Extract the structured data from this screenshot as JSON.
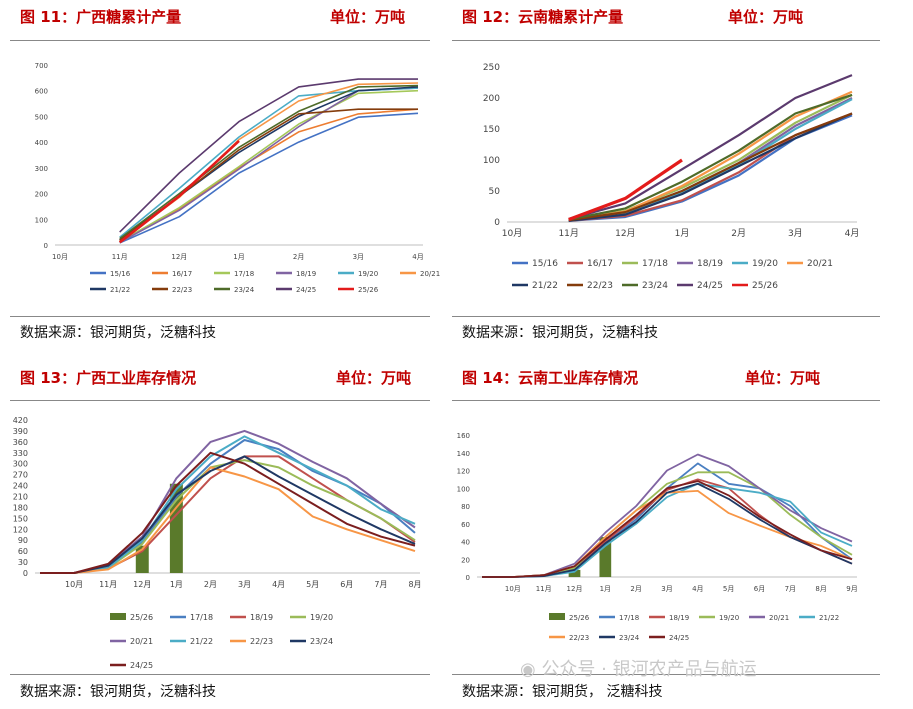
{
  "panels": [
    {
      "title": "图 11：广西糖累计产量",
      "unit": "单位：万吨",
      "source": "数据来源：银河期货，泛糖科技",
      "chart_data": {
        "type": "line",
        "categories": [
          "10月",
          "11月",
          "12月",
          "1月",
          "2月",
          "3月",
          "4月"
        ],
        "ylim": [
          0,
          700
        ],
        "yticks": [
          0,
          100,
          200,
          300,
          400,
          500,
          600,
          700
        ],
        "grid": false,
        "legend_position": "bottom",
        "series": [
          {
            "name": "15/16",
            "color": "#4472c4",
            "values": [
              null,
              8,
              110,
              280,
              400,
              497,
              512
            ]
          },
          {
            "name": "16/17",
            "color": "#ed7d31",
            "values": [
              null,
              10,
              140,
              300,
              440,
              510,
              528
            ]
          },
          {
            "name": "17/18",
            "color": "#a5c85a",
            "values": [
              null,
              12,
              145,
              305,
              470,
              590,
              600
            ]
          },
          {
            "name": "18/19",
            "color": "#8064a2",
            "values": [
              null,
              10,
              135,
              295,
              460,
              600,
              610
            ]
          },
          {
            "name": "19/20",
            "color": "#4bacc6",
            "values": [
              null,
              30,
              220,
              420,
              580,
              600,
              610
            ]
          },
          {
            "name": "20/21",
            "color": "#f79646",
            "values": [
              null,
              15,
              185,
              410,
              560,
              625,
              630
            ]
          },
          {
            "name": "21/22",
            "color": "#1f3864",
            "values": [
              null,
              20,
              190,
              360,
              500,
              600,
              615
            ]
          },
          {
            "name": "22/23",
            "color": "#843c0c",
            "values": [
              null,
              18,
              190,
              370,
              510,
              528,
              528
            ]
          },
          {
            "name": "23/24",
            "color": "#4e6b29",
            "values": [
              null,
              25,
              200,
              380,
              520,
              615,
              620
            ]
          },
          {
            "name": "24/25",
            "color": "#5b3a6e",
            "values": [
              null,
              50,
              280,
              480,
              615,
              645,
              645
            ]
          },
          {
            "name": "25/26",
            "color": "#e31b1b",
            "values": [
              null,
              10,
              190,
              405,
              null,
              null,
              null
            ]
          }
        ]
      }
    },
    {
      "title": "图 12：云南糖累计产量",
      "unit": "单位：万吨",
      "source": "数据来源：银河期货，泛糖科技",
      "chart_data": {
        "type": "line",
        "categories": [
          "10月",
          "11月",
          "12月",
          "1月",
          "2月",
          "3月",
          "4月"
        ],
        "ylim": [
          0,
          250
        ],
        "yticks": [
          0,
          50,
          100,
          150,
          200,
          250
        ],
        "grid": false,
        "legend_position": "bottom",
        "series": [
          {
            "name": "15/16",
            "color": "#4472c4",
            "values": [
              null,
              2,
              8,
              33,
              75,
              135,
              172
            ]
          },
          {
            "name": "16/17",
            "color": "#c0504d",
            "values": [
              null,
              2,
              10,
              35,
              80,
              140,
              175
            ]
          },
          {
            "name": "17/18",
            "color": "#9bbb59",
            "values": [
              null,
              3,
              18,
              55,
              100,
              160,
              205
            ]
          },
          {
            "name": "18/19",
            "color": "#8064a2",
            "values": [
              null,
              3,
              15,
              50,
              95,
              155,
              200
            ]
          },
          {
            "name": "19/20",
            "color": "#4bacc6",
            "values": [
              null,
              3,
              14,
              48,
              92,
              150,
              198
            ]
          },
          {
            "name": "20/21",
            "color": "#f79646",
            "values": [
              null,
              3,
              17,
              58,
              110,
              170,
              210
            ]
          },
          {
            "name": "21/22",
            "color": "#1f3864",
            "values": [
              null,
              2,
              12,
              45,
              90,
              135,
              175
            ]
          },
          {
            "name": "22/23",
            "color": "#843c0c",
            "values": [
              null,
              3,
              16,
              50,
              95,
              140,
              175
            ]
          },
          {
            "name": "23/24",
            "color": "#4e6b29",
            "values": [
              null,
              4,
              22,
              65,
              115,
              175,
              205
            ]
          },
          {
            "name": "24/25",
            "color": "#5b3a6e",
            "values": [
              null,
              5,
              30,
              85,
              140,
              200,
              237
            ]
          },
          {
            "name": "25/26",
            "color": "#e31b1b",
            "values": [
              null,
              4,
              38,
              100,
              null,
              null,
              null
            ]
          }
        ]
      }
    },
    {
      "title": "图 13：广西工业库存情况",
      "unit": "单位：万吨",
      "source": "数据来源：银河期货，泛糖科技",
      "chart_data": {
        "type": "line",
        "categories": [
          "",
          "10月",
          "11月",
          "12月",
          "1月",
          "2月",
          "3月",
          "4月",
          "5月",
          "6月",
          "7月",
          "8月"
        ],
        "ylim": [
          0,
          420
        ],
        "yticks": [
          0,
          30,
          60,
          90,
          120,
          150,
          180,
          210,
          240,
          270,
          300,
          330,
          360,
          390,
          420
        ],
        "grid": false,
        "legend_position": "bottom",
        "bar_series": {
          "name": "25/26",
          "color": "#5a7a2b",
          "values": [
            null,
            null,
            null,
            75,
            245,
            null,
            null,
            null,
            null,
            null,
            null,
            null
          ]
        },
        "series": [
          {
            "name": "17/18",
            "color": "#4a7fc1",
            "values": [
              0,
              0,
              15,
              85,
              210,
              300,
              365,
              340,
              280,
              240,
              190,
              110
            ]
          },
          {
            "name": "18/19",
            "color": "#c0504d",
            "values": [
              0,
              0,
              12,
              60,
              160,
              260,
              320,
              320,
              260,
              200,
              150,
              85
            ]
          },
          {
            "name": "19/20",
            "color": "#9bbb59",
            "values": [
              0,
              0,
              14,
              80,
              200,
              290,
              310,
              290,
              240,
              200,
              150,
              90
            ]
          },
          {
            "name": "20/21",
            "color": "#8064a2",
            "values": [
              0,
              0,
              22,
              100,
              260,
              360,
              390,
              355,
              305,
              260,
              190,
              125
            ]
          },
          {
            "name": "21/22",
            "color": "#4bacc6",
            "values": [
              0,
              0,
              14,
              90,
              230,
              320,
              375,
              330,
              285,
              240,
              175,
              135
            ]
          },
          {
            "name": "22/23",
            "color": "#f79646",
            "values": [
              0,
              0,
              10,
              65,
              180,
              290,
              265,
              230,
              155,
              120,
              90,
              60
            ]
          },
          {
            "name": "23/24",
            "color": "#1f3864",
            "values": [
              0,
              0,
              20,
              95,
              215,
              280,
              320,
              265,
              215,
              165,
              120,
              80
            ]
          },
          {
            "name": "24/25",
            "color": "#7b1e1e",
            "values": [
              0,
              0,
              25,
              110,
              240,
              330,
              300,
              245,
              190,
              135,
              100,
              75
            ]
          }
        ]
      }
    },
    {
      "title": "图 14：云南工业库存情况",
      "unit": "单位：万吨",
      "source": "数据来源：银河期货，  泛糖科技",
      "chart_data": {
        "type": "line",
        "categories": [
          "",
          "10月",
          "11月",
          "12月",
          "1月",
          "2月",
          "3月",
          "4月",
          "5月",
          "6月",
          "7月",
          "8月",
          "9月"
        ],
        "ylim": [
          0,
          160
        ],
        "yticks": [
          0,
          20,
          40,
          60,
          80,
          100,
          120,
          140,
          160
        ],
        "grid": false,
        "legend_position": "bottom",
        "bar_series": {
          "name": "25/26",
          "color": "#5a7a2b",
          "values": [
            null,
            null,
            null,
            8,
            45,
            null,
            null,
            null,
            null,
            null,
            null,
            null,
            null
          ]
        },
        "series": [
          {
            "name": "17/18",
            "color": "#4a7fc1",
            "values": [
              0,
              0,
              1,
              8,
              38,
              65,
              100,
              128,
              105,
              100,
              80,
              45,
              20
            ]
          },
          {
            "name": "18/19",
            "color": "#c0504d",
            "values": [
              0,
              0,
              2,
              10,
              40,
              68,
              98,
              110,
              100,
              70,
              45,
              30,
              15
            ]
          },
          {
            "name": "19/20",
            "color": "#9bbb59",
            "values": [
              0,
              0,
              2,
              10,
              45,
              75,
              105,
              118,
              118,
              100,
              70,
              45,
              25
            ]
          },
          {
            "name": "20/21",
            "color": "#8064a2",
            "values": [
              0,
              0,
              2,
              15,
              50,
              80,
              120,
              138,
              125,
              100,
              75,
              55,
              40
            ]
          },
          {
            "name": "21/22",
            "color": "#4bacc6",
            "values": [
              0,
              0,
              1,
              6,
              35,
              60,
              90,
              105,
              100,
              95,
              85,
              50,
              35
            ]
          },
          {
            "name": "22/23",
            "color": "#f79646",
            "values": [
              0,
              0,
              2,
              12,
              45,
              75,
              95,
              97,
              72,
              58,
              45,
              35,
              20
            ]
          },
          {
            "name": "23/24",
            "color": "#1f3864",
            "values": [
              0,
              0,
              1,
              8,
              38,
              62,
              95,
              105,
              88,
              65,
              45,
              30,
              15
            ]
          },
          {
            "name": "24/25",
            "color": "#7b1e1e",
            "values": [
              0,
              0,
              2,
              12,
              42,
              70,
              100,
              108,
              92,
              68,
              48,
              30,
              20
            ]
          }
        ]
      }
    }
  ],
  "watermark": "公众号 · 银河农产品与航运"
}
